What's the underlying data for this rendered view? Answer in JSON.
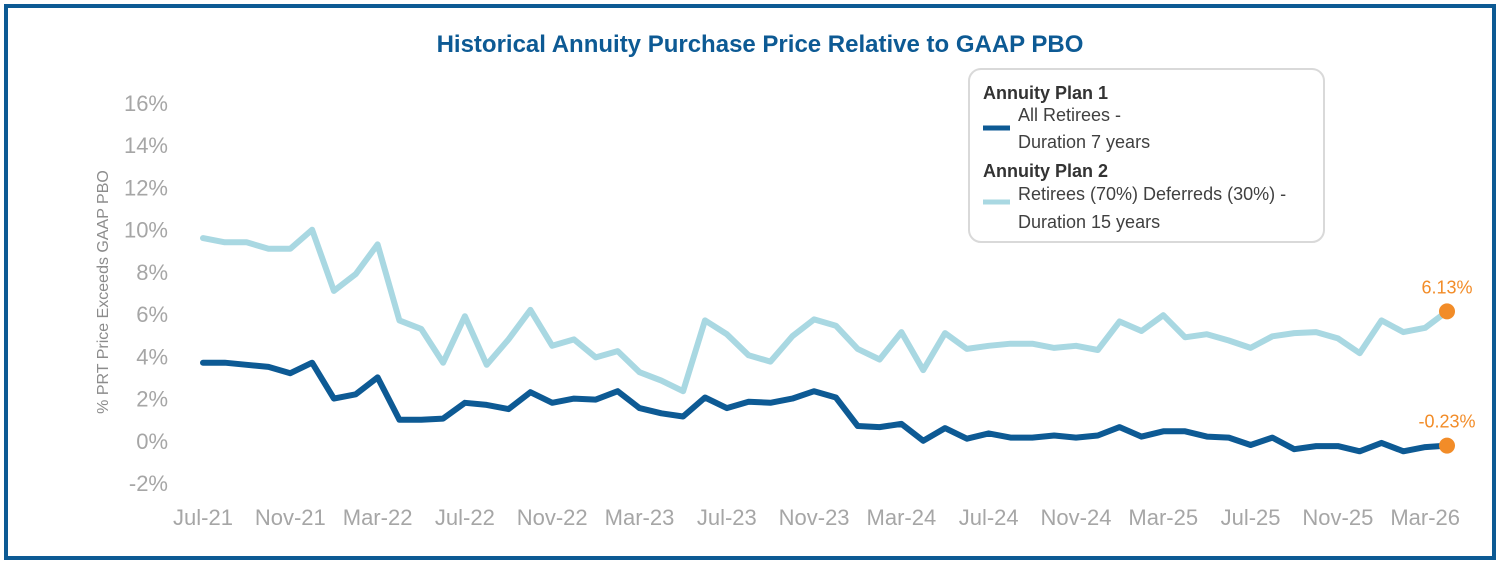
{
  "chart_data": {
    "type": "line",
    "title": "Historical Annuity Purchase Price Relative to GAAP PBO",
    "xlabel": "",
    "ylabel": "% PRT Price Exceeds GAAP PBO",
    "ylim": [
      -2,
      16
    ],
    "y_ticks": [
      16,
      14,
      12,
      10,
      8,
      6,
      4,
      2,
      0,
      -2
    ],
    "y_tick_labels": [
      "16%",
      "14%",
      "12%",
      "10%",
      "8%",
      "6%",
      "4%",
      "2%",
      "0%",
      "-2%"
    ],
    "x_tick_labels": [
      "Jul-21",
      "Nov-21",
      "Mar-22",
      "Jul-22",
      "Nov-22",
      "Mar-23",
      "Jul-23",
      "Nov-23",
      "Mar-24",
      "Jul-24",
      "Nov-24",
      "Mar-25",
      "Jul-25",
      "Nov-25",
      "Mar-26"
    ],
    "n_points": 58,
    "colors": {
      "plan1": "#0d5a94",
      "plan2": "#a9d8e2",
      "marker": "#f28c28",
      "title": "#0d5a94",
      "border": "#0d5a94"
    },
    "series": [
      {
        "name": "All Retirees - Duration 7 years",
        "legend_header": "Annuity Plan 1",
        "legend_line1": "All Retirees -",
        "legend_line2": "Duration 7 years",
        "values": [
          3.7,
          3.7,
          3.6,
          3.5,
          3.2,
          3.7,
          2.0,
          2.2,
          3.0,
          1.0,
          1.0,
          1.05,
          1.8,
          1.7,
          1.5,
          2.3,
          1.8,
          2.0,
          1.95,
          2.35,
          1.55,
          1.3,
          1.15,
          2.05,
          1.55,
          1.85,
          1.8,
          2.0,
          2.35,
          2.05,
          0.7,
          0.65,
          0.8,
          0.0,
          0.6,
          0.1,
          0.35,
          0.15,
          0.15,
          0.25,
          0.15,
          0.25,
          0.65,
          0.2,
          0.45,
          0.45,
          0.2,
          0.15,
          -0.2,
          0.15,
          -0.4,
          -0.25,
          -0.25,
          -0.5,
          -0.1,
          -0.5,
          -0.3,
          -0.23
        ]
      },
      {
        "name": "Retirees (70%) Deferreds (30%) - Duration 15 years",
        "legend_header": "Annuity Plan 2",
        "legend_line1": "Retirees (70%) Deferreds (30%) -",
        "legend_line2": "Duration 15 years",
        "values": [
          9.6,
          9.4,
          9.4,
          9.1,
          9.1,
          10.0,
          7.1,
          7.9,
          9.3,
          5.7,
          5.3,
          3.7,
          5.9,
          3.6,
          4.8,
          6.2,
          4.5,
          4.8,
          3.95,
          4.25,
          3.25,
          2.85,
          2.35,
          5.7,
          5.05,
          4.05,
          3.75,
          4.95,
          5.75,
          5.45,
          4.35,
          3.85,
          5.15,
          3.35,
          5.1,
          4.35,
          4.5,
          4.6,
          4.6,
          4.4,
          4.5,
          4.3,
          5.65,
          5.2,
          5.95,
          4.9,
          5.05,
          4.75,
          4.4,
          4.95,
          5.1,
          5.15,
          4.85,
          4.15,
          5.7,
          5.15,
          5.35,
          6.13
        ]
      }
    ],
    "end_labels": [
      "6.13%",
      "-0.23%"
    ],
    "legend_placement": "top-right"
  }
}
